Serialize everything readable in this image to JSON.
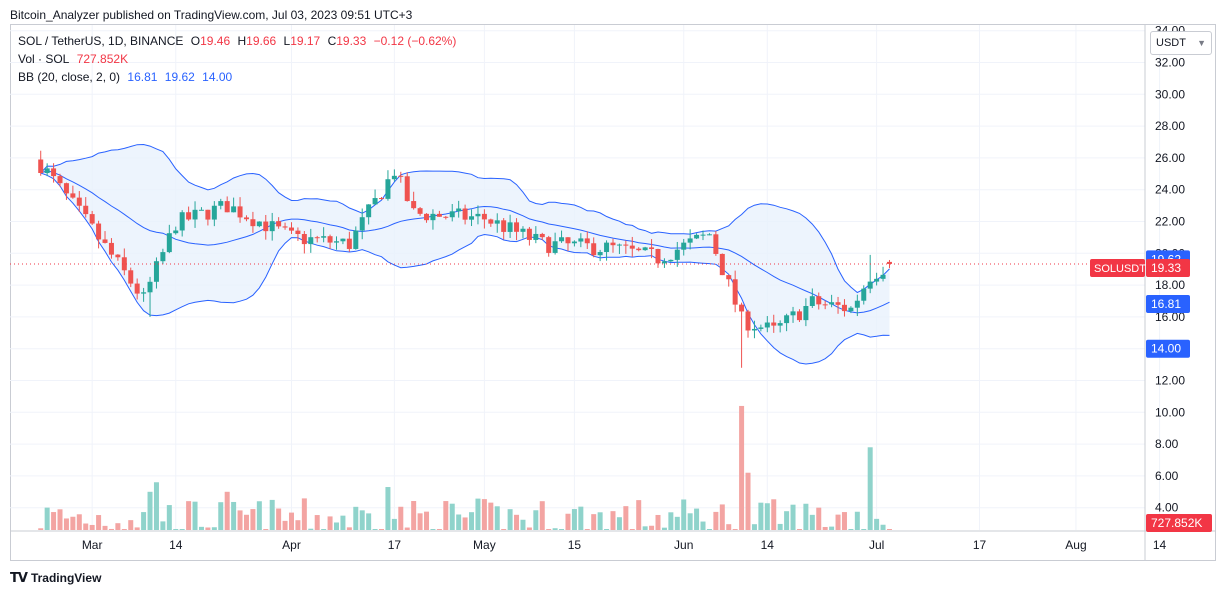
{
  "header": {
    "published": "Bitcoin_Analyzer published on TradingView.com, Jul 03, 2023 09:51 UTC+3"
  },
  "legend": {
    "symbol": "SOL / TetherUS, 1D, BINANCE",
    "open_label": "O",
    "open": "19.46",
    "high_label": "H",
    "high": "19.66",
    "low_label": "L",
    "low": "19.17",
    "close_label": "C",
    "close": "19.33",
    "change": "−0.12 (−0.62%)",
    "vol_label": "Vol · SOL",
    "vol": "727.852K",
    "bb_label": "BB (20, close, 2, 0)",
    "bb_mid": "16.81",
    "bb_upper": "19.62",
    "bb_lower": "14.00"
  },
  "price_axis": {
    "currency": "USDT",
    "ticks": [
      "34.00",
      "32.00",
      "30.00",
      "28.00",
      "26.00",
      "24.00",
      "22.00",
      "20.00",
      "18.00",
      "16.00",
      "14.00",
      "12.00",
      "10.00",
      "8.00",
      "6.00",
      "4.00"
    ]
  },
  "badges": {
    "bb_upper": "19.62",
    "symbol_label": "SOLUSDT",
    "last_price": "19.33",
    "bb_mid": "16.81",
    "bb_lower": "14.00",
    "volume": "727.852K"
  },
  "time_axis": {
    "labels": [
      "Mar",
      "14",
      "Apr",
      "17",
      "May",
      "15",
      "Jun",
      "14",
      "Jul",
      "17",
      "Aug",
      "14"
    ]
  },
  "footer": {
    "brand": "TradingView"
  },
  "colors": {
    "up": "#26a69a",
    "down": "#ef5350",
    "up_volume": "#8fd3cb",
    "down_volume": "#f3a4a2",
    "bb_line": "#2962ff",
    "bb_fill": "#e8f1fd"
  },
  "chart_data": {
    "type": "candlestick",
    "title": "SOL / TetherUS, 1D, BINANCE",
    "ylabel": "USDT",
    "ylim": [
      12,
      34
    ],
    "anchors": [
      {
        "date": "2023-02-21",
        "close": 25.6
      },
      {
        "date": "2023-03-01",
        "close": 21.5
      },
      {
        "date": "2023-03-09",
        "close": 17.1
      },
      {
        "date": "2023-03-14",
        "close": 21.9
      },
      {
        "date": "2023-03-22",
        "close": 23.0
      },
      {
        "date": "2023-04-01",
        "close": 21.0
      },
      {
        "date": "2023-04-10",
        "close": 20.6
      },
      {
        "date": "2023-04-17",
        "close": 25.2
      },
      {
        "date": "2023-04-20",
        "close": 22.5
      },
      {
        "date": "2023-05-01",
        "close": 22.2
      },
      {
        "date": "2023-05-10",
        "close": 20.6
      },
      {
        "date": "2023-05-21",
        "close": 20.3
      },
      {
        "date": "2023-05-28",
        "close": 19.7
      },
      {
        "date": "2023-06-05",
        "close": 21.2
      },
      {
        "date": "2023-06-10",
        "close": 15.8
      },
      {
        "date": "2023-06-15",
        "close": 15.1
      },
      {
        "date": "2023-06-21",
        "close": 16.9
      },
      {
        "date": "2023-06-27",
        "close": 16.5
      },
      {
        "date": "2023-06-30",
        "close": 18.6
      },
      {
        "date": "2023-07-03",
        "close": 19.33
      }
    ],
    "bollinger_last": {
      "upper": 19.62,
      "middle": 16.81,
      "lower": 14.0
    },
    "last_volume": "727.852K"
  }
}
